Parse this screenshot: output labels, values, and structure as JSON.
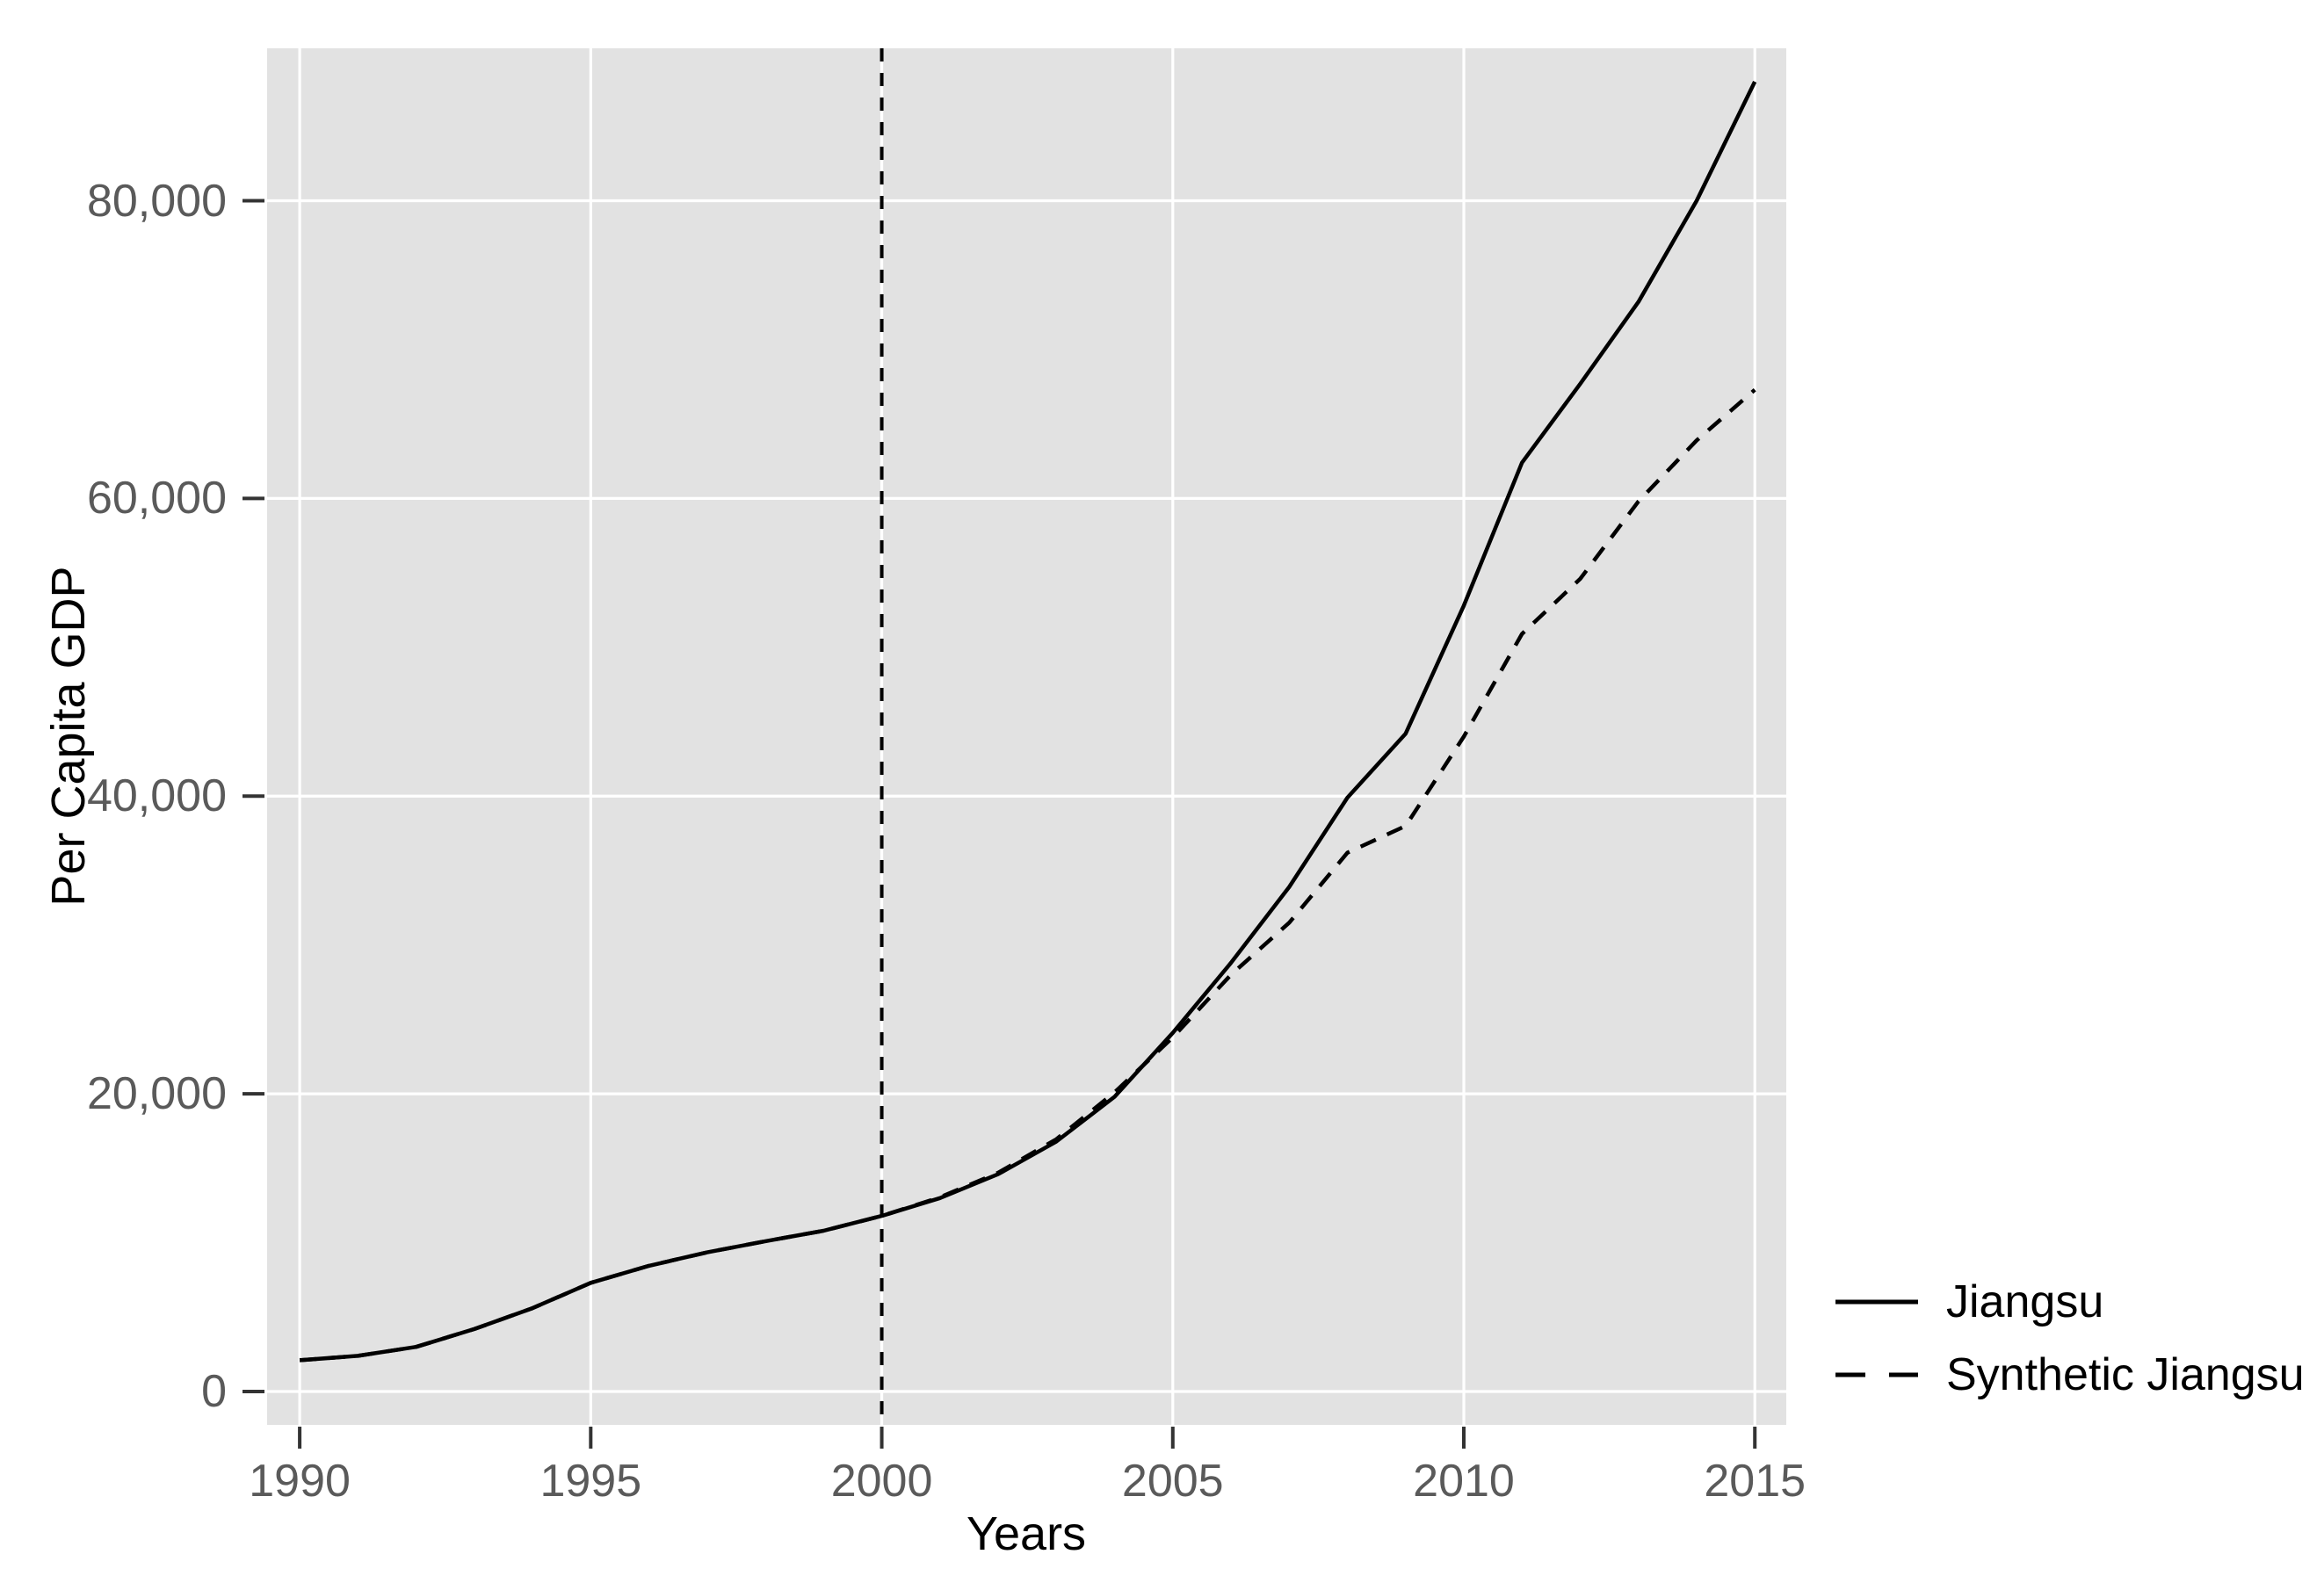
{
  "chart_data": {
    "type": "line",
    "title": "",
    "xlabel": "Years",
    "ylabel": "Per Capita GDP",
    "x": [
      1990,
      1991,
      1992,
      1993,
      1994,
      1995,
      1996,
      1997,
      1998,
      1999,
      2000,
      2001,
      2002,
      2003,
      2004,
      2005,
      2006,
      2007,
      2008,
      2009,
      2010,
      2011,
      2012,
      2013,
      2014,
      2015
    ],
    "series": [
      {
        "name": "Jiangsu",
        "line_style": "solid",
        "values": [
          2100,
          2400,
          3000,
          4200,
          5600,
          7300,
          8450,
          9350,
          10100,
          10800,
          11800,
          13000,
          14600,
          16800,
          19800,
          24100,
          28800,
          33900,
          39900,
          44200,
          52800,
          62400,
          67700,
          73200,
          80000,
          88000
        ]
      },
      {
        "name": "Synthetic Jiangsu",
        "line_style": "dashed",
        "values": [
          2100,
          2400,
          3000,
          4200,
          5600,
          7300,
          8450,
          9350,
          10100,
          10800,
          11800,
          13050,
          14700,
          16950,
          20100,
          23800,
          28000,
          31500,
          36200,
          38000,
          44000,
          50900,
          54600,
          59800,
          63900,
          67300
        ]
      }
    ],
    "treatment_line_x": 2000,
    "x_ticks": [
      1990,
      1995,
      2000,
      2005,
      2010,
      2015
    ],
    "x_tick_labels": [
      "1990",
      "1995",
      "2000",
      "2005",
      "2010",
      "2015"
    ],
    "y_ticks": [
      0,
      20000,
      40000,
      60000,
      80000
    ],
    "y_tick_labels": [
      "0",
      "20,000",
      "40,000",
      "60,000",
      "80,000"
    ],
    "xlim": [
      1989.44,
      2015.54
    ],
    "ylim": [
      -2241,
      90240
    ],
    "grid": "major-only-white-on-gray-panel",
    "legend_position": "outside-right-bottom"
  },
  "legend": {
    "items": [
      {
        "label": "Jiangsu",
        "line_style": "solid"
      },
      {
        "label": "Synthetic Jiangsu",
        "line_style": "dashed"
      }
    ]
  },
  "colors": {
    "background": "#FFFFFF",
    "panel": "#E2E2E2",
    "gridline": "#FFFFFF",
    "tick": "#333333",
    "tick_label": "#5A5A5A",
    "axis_title": "#000000",
    "series_line": "#000000",
    "treatment_line": "#000000"
  }
}
